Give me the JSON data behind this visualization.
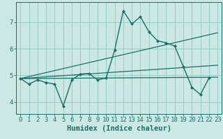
{
  "background_color": "#cce8e5",
  "grid_color": "#99ccca",
  "line_color": "#1a6e65",
  "xlabel": "Humidex (Indice chaleur)",
  "xlabel_fontsize": 7.5,
  "tick_fontsize": 6.5,
  "xlim": [
    -0.5,
    23.5
  ],
  "ylim": [
    3.55,
    7.75
  ],
  "yticks": [
    4,
    5,
    6,
    7
  ],
  "xticks": [
    0,
    1,
    2,
    3,
    4,
    5,
    6,
    7,
    8,
    9,
    10,
    11,
    12,
    13,
    14,
    15,
    16,
    17,
    18,
    19,
    20,
    21,
    22,
    23
  ],
  "lines": [
    {
      "x": [
        0,
        1,
        2,
        3,
        4,
        5,
        6,
        7,
        8,
        9,
        10,
        11,
        12,
        13,
        14,
        15,
        16,
        17,
        18,
        19,
        20,
        21,
        22
      ],
      "y": [
        4.88,
        4.67,
        4.83,
        4.73,
        4.67,
        3.85,
        4.83,
        5.05,
        5.07,
        4.83,
        4.9,
        5.95,
        7.42,
        6.93,
        7.2,
        6.63,
        6.3,
        6.22,
        6.1,
        5.33,
        4.55,
        4.28,
        4.9
      ],
      "has_markers": true,
      "lw": 1.0
    },
    {
      "x": [
        0,
        23
      ],
      "y": [
        4.88,
        4.93
      ],
      "has_markers": false,
      "lw": 0.9
    },
    {
      "x": [
        0,
        23
      ],
      "y": [
        4.88,
        6.6
      ],
      "has_markers": false,
      "lw": 0.9
    },
    {
      "x": [
        0,
        23
      ],
      "y": [
        4.88,
        5.38
      ],
      "has_markers": false,
      "lw": 0.9
    }
  ]
}
